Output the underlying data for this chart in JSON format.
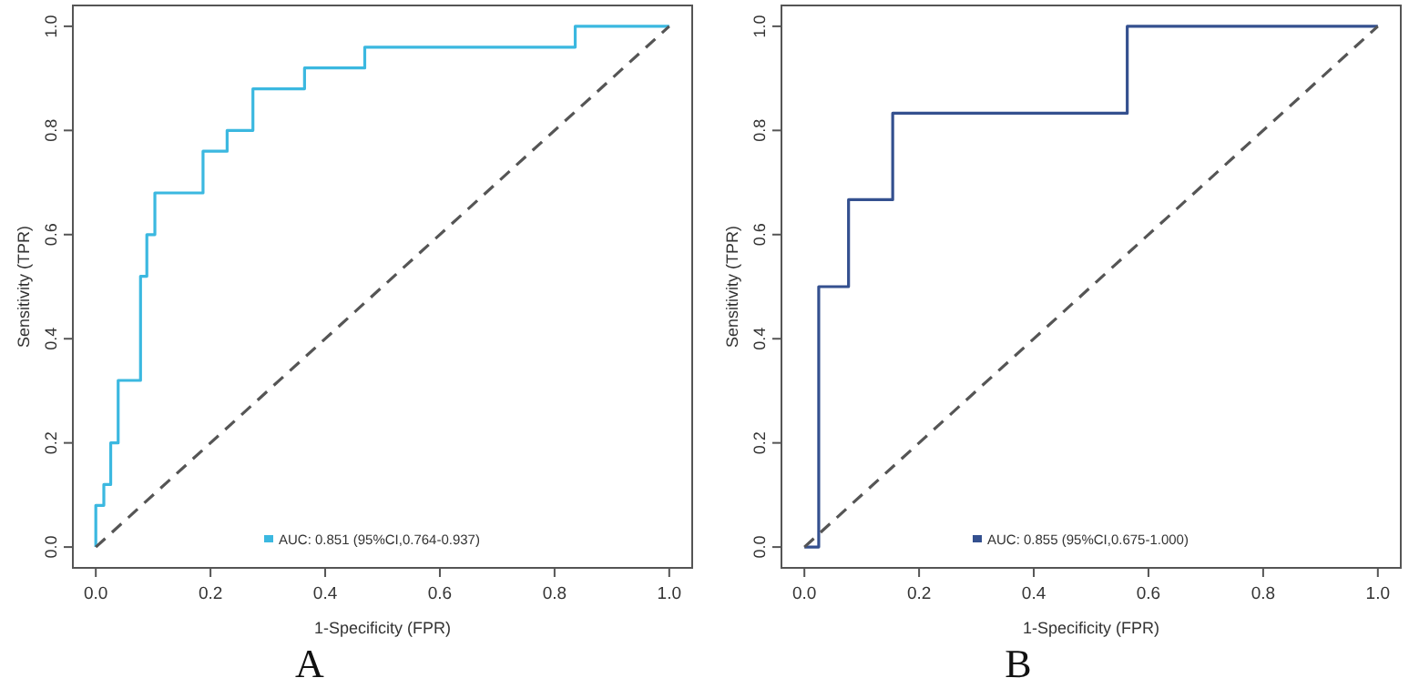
{
  "chart_data": [
    {
      "type": "line",
      "title": "A",
      "xlabel": "1-Specificity (FPR)",
      "ylabel": "Sensitivity (TPR)",
      "xlim": [
        -0.04,
        1.04
      ],
      "ylim": [
        -0.04,
        1.04
      ],
      "xticks": [
        {
          "value": 0,
          "label": "0.0"
        },
        {
          "value": 0.2,
          "label": "0.2"
        },
        {
          "value": 0.4,
          "label": "0.4"
        },
        {
          "value": 0.6,
          "label": "0.6"
        },
        {
          "value": 0.8,
          "label": "0.8"
        },
        {
          "value": 1,
          "label": "1.0"
        }
      ],
      "yticks": [
        {
          "value": 0,
          "label": "0.0"
        },
        {
          "value": 0.2,
          "label": "0.2"
        },
        {
          "value": 0.4,
          "label": "0.4"
        },
        {
          "value": 0.6,
          "label": "0.6"
        },
        {
          "value": 0.8,
          "label": "0.8"
        },
        {
          "value": 1,
          "label": "1.0"
        }
      ],
      "legend": "bottom",
      "grid": false,
      "series": [
        {
          "name": "AUC: 0.851 (95%CI,0.764-0.937)",
          "color": "#3bb8e0",
          "line_style": "solid",
          "x": [
            0,
            0,
            0.014,
            0.014,
            0.026,
            0.026,
            0.039,
            0.039,
            0.078,
            0.078,
            0.089,
            0.089,
            0.103,
            0.103,
            0.187,
            0.187,
            0.229,
            0.229,
            0.274,
            0.274,
            0.364,
            0.364,
            0.469,
            0.469,
            0.836,
            0.836,
            1
          ],
          "values": [
            0,
            0.08,
            0.08,
            0.12,
            0.12,
            0.2,
            0.2,
            0.32,
            0.32,
            0.52,
            0.52,
            0.6,
            0.6,
            0.68,
            0.68,
            0.76,
            0.76,
            0.8,
            0.8,
            0.88,
            0.88,
            0.92,
            0.92,
            0.96,
            0.96,
            1,
            1
          ]
        },
        {
          "color": "#555555",
          "line_style": "dashed",
          "x": [
            0,
            1
          ],
          "values": [
            0,
            1
          ]
        }
      ]
    },
    {
      "type": "line",
      "title": "B",
      "xlabel": "1-Specificity (FPR)",
      "ylabel": "Sensitivity (TPR)",
      "xlim": [
        -0.04,
        1.04
      ],
      "ylim": [
        -0.04,
        1.04
      ],
      "xticks": [
        {
          "value": 0,
          "label": "0.0"
        },
        {
          "value": 0.2,
          "label": "0.2"
        },
        {
          "value": 0.4,
          "label": "0.4"
        },
        {
          "value": 0.6,
          "label": "0.6"
        },
        {
          "value": 0.8,
          "label": "0.8"
        },
        {
          "value": 1,
          "label": "1.0"
        }
      ],
      "yticks": [
        {
          "value": 0,
          "label": "0.0"
        },
        {
          "value": 0.2,
          "label": "0.2"
        },
        {
          "value": 0.4,
          "label": "0.4"
        },
        {
          "value": 0.6,
          "label": "0.6"
        },
        {
          "value": 0.8,
          "label": "0.8"
        },
        {
          "value": 1,
          "label": "1.0"
        }
      ],
      "legend": "bottom",
      "grid": false,
      "series": [
        {
          "name": "AUC: 0.855 (95%CI,0.675-1.000)",
          "color": "#34508f",
          "line_style": "solid",
          "x": [
            0,
            0.025,
            0.025,
            0.077,
            0.077,
            0.154,
            0.154,
            0.563,
            0.563,
            1
          ],
          "values": [
            0,
            0,
            0.5,
            0.5,
            0.667,
            0.667,
            0.833,
            0.833,
            1,
            1
          ]
        },
        {
          "color": "#555555",
          "line_style": "dashed",
          "x": [
            0,
            1
          ],
          "values": [
            0,
            1
          ]
        }
      ]
    }
  ]
}
